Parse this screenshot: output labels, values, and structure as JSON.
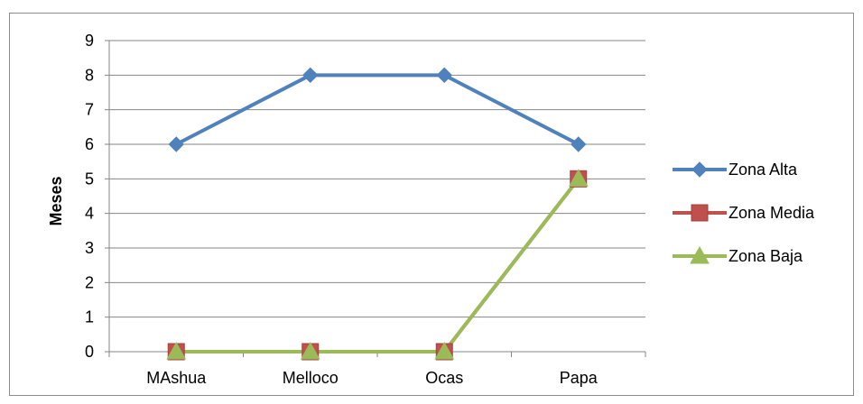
{
  "chart_data": {
    "type": "line",
    "title": "",
    "xlabel": "",
    "ylabel": "Meses",
    "ylim": [
      0,
      9
    ],
    "yticks": [
      0,
      1,
      2,
      3,
      4,
      5,
      6,
      7,
      8,
      9
    ],
    "grid": true,
    "legend_position": "right",
    "categories": [
      "MAshua",
      "Melloco",
      "Ocas",
      "Papa"
    ],
    "series": [
      {
        "name": "Zona Alta",
        "values": [
          6,
          8,
          8,
          6
        ],
        "color": "#4f81bd",
        "marker": "diamond"
      },
      {
        "name": "Zona Media",
        "values": [
          0,
          0,
          0,
          5
        ],
        "color": "#c0504d",
        "marker": "square"
      },
      {
        "name": "Zona Baja",
        "values": [
          0,
          0,
          0,
          5
        ],
        "color": "#9bbb59",
        "marker": "triangle"
      }
    ]
  }
}
